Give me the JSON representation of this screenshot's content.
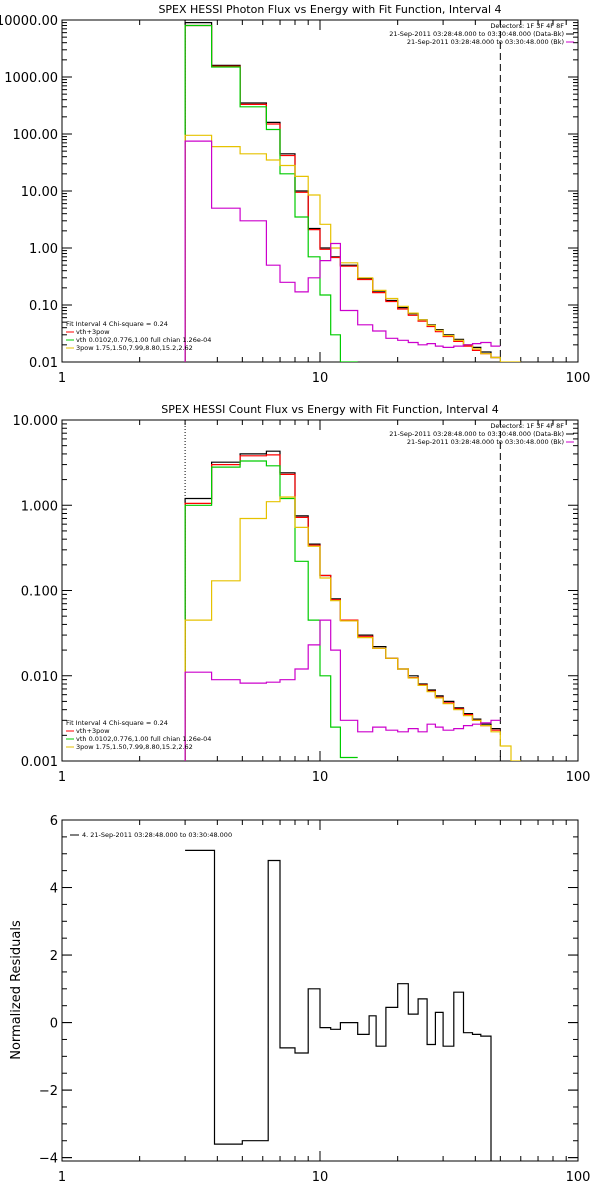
{
  "chart_data": [
    {
      "type": "line",
      "title": "SPEX HESSI Photon Flux vs Energy with Fit Function, Interval 4",
      "xscale": "log",
      "yscale": "log",
      "xlim": [
        1,
        100
      ],
      "ylim": [
        0.01,
        10000
      ],
      "xticks": [
        1,
        10,
        100
      ],
      "xtick_labels": [
        "1",
        "10",
        "100"
      ],
      "yticks": [
        0.01,
        0.1,
        1,
        10,
        100,
        1000,
        10000
      ],
      "ytick_labels": [
        "0.01",
        "0.10",
        "1.00",
        "10.00",
        "100.00",
        "1000.00",
        "10000.00"
      ],
      "vlines": [
        {
          "x": 3,
          "style": "dotted",
          "color": "#000000"
        },
        {
          "x": 50,
          "style": "dashed",
          "color": "#000000"
        }
      ],
      "legend_top_right": [
        {
          "text": "Detectors: 1F 3F 4F 8F",
          "color": "#000000"
        },
        {
          "text": "21-Sep-2011 03:28:48.000 to 03:30:48.000 (Data-Bk)",
          "color": "#000000"
        },
        {
          "text": "21-Sep-2011 03:28:48.000 to 03:30:48.000 (Bk)",
          "color": "#cc00cc"
        }
      ],
      "legend_bottom_left": [
        {
          "text": "Fit Interval 4   Chi-square = 0.24",
          "color": "#000000"
        },
        {
          "text": "vth+3pow",
          "color": "#ff0000"
        },
        {
          "text": "vth 0.0102,0.776,1.00  full chian 1.26e-04",
          "color": "#00cc00"
        },
        {
          "text": "3pow 1.75,1.50,7.99,8.80,15.2,2.62",
          "color": "#e6c200"
        }
      ],
      "bin_edges": [
        3,
        3.8,
        4.9,
        6.2,
        7.0,
        8.0,
        9.0,
        10.0,
        11.0,
        12.0,
        14.0,
        16.0,
        18.0,
        20.0,
        22.0,
        24.0,
        26.0,
        28.0,
        30.0,
        33.0,
        36.0,
        39.0,
        42.0,
        46.0,
        50.0,
        55.0,
        60.0
      ],
      "series": [
        {
          "name": "Data-Bk",
          "color": "#000000",
          "values": [
            9000,
            1600,
            350,
            160,
            45,
            10,
            2.2,
            1.0,
            0.7,
            0.5,
            0.29,
            0.17,
            0.12,
            0.09,
            0.07,
            0.055,
            0.045,
            0.037,
            0.03,
            0.025,
            0.02,
            0.018,
            0.015,
            0.012,
            null,
            null
          ]
        },
        {
          "name": "vth+3pow",
          "color": "#ff0000",
          "values": [
            8000,
            1550,
            330,
            150,
            42,
            9.5,
            2.1,
            0.95,
            0.68,
            0.48,
            0.28,
            0.165,
            0.115,
            0.085,
            0.066,
            0.052,
            0.042,
            0.034,
            0.028,
            0.023,
            0.019,
            0.016,
            0.014,
            0.012,
            null,
            null
          ]
        },
        {
          "name": "vth",
          "color": "#00cc00",
          "values": [
            8000,
            1500,
            300,
            120,
            20,
            3.5,
            0.7,
            0.15,
            0.03,
            0.008,
            null,
            null,
            null,
            null,
            null,
            null,
            null,
            null,
            null,
            null,
            null,
            null,
            null,
            null,
            null,
            null
          ]
        },
        {
          "name": "3pow",
          "color": "#e6c200",
          "values": [
            95,
            60,
            45,
            35,
            28,
            18,
            8.5,
            2.6,
            1.0,
            0.55,
            0.3,
            0.18,
            0.13,
            0.095,
            0.072,
            0.055,
            0.044,
            0.036,
            0.029,
            0.024,
            0.02,
            0.017,
            0.014,
            0.012,
            0.01,
            0.009
          ]
        },
        {
          "name": "Bk",
          "color": "#cc00cc",
          "values": [
            75,
            5,
            3,
            0.5,
            0.25,
            0.17,
            0.3,
            0.6,
            1.2,
            0.08,
            0.045,
            0.035,
            0.026,
            0.024,
            0.022,
            0.02,
            0.021,
            0.019,
            0.018,
            0.019,
            0.02,
            0.021,
            0.022,
            0.019,
            null,
            null
          ]
        }
      ]
    },
    {
      "type": "line",
      "title": "SPEX HESSI Count Flux vs Energy with Fit Function, Interval 4",
      "xscale": "log",
      "yscale": "log",
      "xlim": [
        1,
        100
      ],
      "ylim": [
        0.001,
        10
      ],
      "xticks": [
        1,
        10,
        100
      ],
      "xtick_labels": [
        "1",
        "10",
        "100"
      ],
      "yticks": [
        0.001,
        0.01,
        0.1,
        1,
        10
      ],
      "ytick_labels": [
        "0.001",
        "0.010",
        "0.100",
        "1.000",
        "10.000"
      ],
      "vlines": [
        {
          "x": 3,
          "style": "dotted",
          "color": "#000000"
        },
        {
          "x": 50,
          "style": "dashed",
          "color": "#000000"
        }
      ],
      "legend_top_right": [
        {
          "text": "Detectors: 1F 3F 4F 8F",
          "color": "#000000"
        },
        {
          "text": "21-Sep-2011 03:28:48.000 to 03:30:48.000 (Data-Bk)",
          "color": "#000000"
        },
        {
          "text": "21-Sep-2011 03:28:48.000 to 03:30:48.000 (Bk)",
          "color": "#cc00cc"
        }
      ],
      "legend_bottom_left": [
        {
          "text": "Fit Interval 4   Chi-square = 0.24",
          "color": "#000000"
        },
        {
          "text": "vth+3pow",
          "color": "#ff0000"
        },
        {
          "text": "vth 0.0102,0.776,1.00  full chian 1.26e-04",
          "color": "#00cc00"
        },
        {
          "text": "3pow 1.75,1.50,7.99,8.80,15.2,2.62",
          "color": "#e6c200"
        }
      ],
      "bin_edges": [
        3,
        3.8,
        4.9,
        6.2,
        7.0,
        8.0,
        9.0,
        10.0,
        11.0,
        12.0,
        14.0,
        16.0,
        18.0,
        20.0,
        22.0,
        24.0,
        26.0,
        28.0,
        30.0,
        33.0,
        36.0,
        39.0,
        42.0,
        46.0,
        50.0,
        55.0,
        60.0
      ],
      "series": [
        {
          "name": "Data-Bk",
          "color": "#000000",
          "values": [
            1.2,
            3.2,
            4.0,
            4.3,
            2.4,
            0.75,
            0.35,
            0.15,
            0.08,
            0.045,
            0.03,
            0.022,
            0.016,
            0.012,
            0.01,
            0.008,
            0.0068,
            0.0058,
            0.005,
            0.0042,
            0.0036,
            0.0031,
            0.0027,
            0.0024,
            null,
            null
          ]
        },
        {
          "name": "vth+3pow",
          "color": "#ff0000",
          "values": [
            1.05,
            3.0,
            3.8,
            3.9,
            2.3,
            0.72,
            0.34,
            0.15,
            0.078,
            0.045,
            0.029,
            0.021,
            0.016,
            0.012,
            0.0095,
            0.0078,
            0.0066,
            0.0056,
            0.0048,
            0.0041,
            0.0035,
            0.003,
            0.0026,
            0.0023,
            null,
            null
          ]
        },
        {
          "name": "vth",
          "color": "#00cc00",
          "values": [
            1.0,
            2.8,
            3.3,
            2.9,
            1.2,
            0.22,
            0.045,
            0.01,
            0.0025,
            0.0011,
            null,
            null,
            null,
            null,
            null,
            null,
            null,
            null,
            null,
            null,
            null,
            null,
            null,
            null,
            null,
            null
          ]
        },
        {
          "name": "3pow",
          "color": "#e6c200",
          "values": [
            0.045,
            0.13,
            0.7,
            1.1,
            1.25,
            0.55,
            0.33,
            0.14,
            0.076,
            0.044,
            0.028,
            0.021,
            0.016,
            0.012,
            0.0094,
            0.0077,
            0.0065,
            0.0055,
            0.0047,
            0.004,
            0.0034,
            0.003,
            0.0026,
            0.0022,
            0.0015,
            0.001
          ]
        },
        {
          "name": "Bk",
          "color": "#cc00cc",
          "values": [
            0.011,
            0.009,
            0.0082,
            0.0084,
            0.009,
            0.012,
            0.023,
            0.045,
            0.02,
            0.003,
            0.0022,
            0.0025,
            0.0023,
            0.0022,
            0.0024,
            0.0022,
            0.0027,
            0.0025,
            0.0023,
            0.0024,
            0.0026,
            0.0027,
            0.0028,
            0.003,
            null,
            null
          ]
        }
      ]
    },
    {
      "type": "line",
      "title": "",
      "xscale": "log",
      "yscale": "linear",
      "xlim": [
        1,
        100
      ],
      "ylim": [
        -4.1,
        6
      ],
      "xticks": [
        1,
        10,
        100
      ],
      "xtick_labels": [
        "1",
        "10",
        "100"
      ],
      "yticks": [
        -4,
        -2,
        0,
        2,
        4,
        6
      ],
      "ytick_labels": [
        "−4",
        "−2",
        "0",
        "2",
        "4",
        "6"
      ],
      "ylabel": "Normalized Residuals",
      "vlines": [],
      "legend_top_left": [
        {
          "text": "4. 21-Sep-2011 03:28:48.000 to 03:30:48.000",
          "color": "#000000"
        }
      ],
      "bin_edges": [
        3,
        3.9,
        5.0,
        6.3,
        7.0,
        8.0,
        9.0,
        10.0,
        11.0,
        12.0,
        14.0,
        15.5,
        16.5,
        18.0,
        20.0,
        22.0,
        24.0,
        26.0,
        28.0,
        30.0,
        33.0,
        36.0,
        39.0,
        42.0,
        46.0,
        50.0
      ],
      "series": [
        {
          "name": "",
          "color": "#000000",
          "values": [
            5.1,
            -3.6,
            -3.5,
            4.8,
            -0.75,
            -0.9,
            1.0,
            -0.15,
            -0.2,
            0.0,
            -0.35,
            0.2,
            -0.7,
            0.45,
            1.15,
            0.25,
            0.7,
            -0.65,
            0.3,
            -0.7,
            0.9,
            -0.3,
            -0.35,
            -0.4,
            null
          ]
        }
      ]
    }
  ]
}
